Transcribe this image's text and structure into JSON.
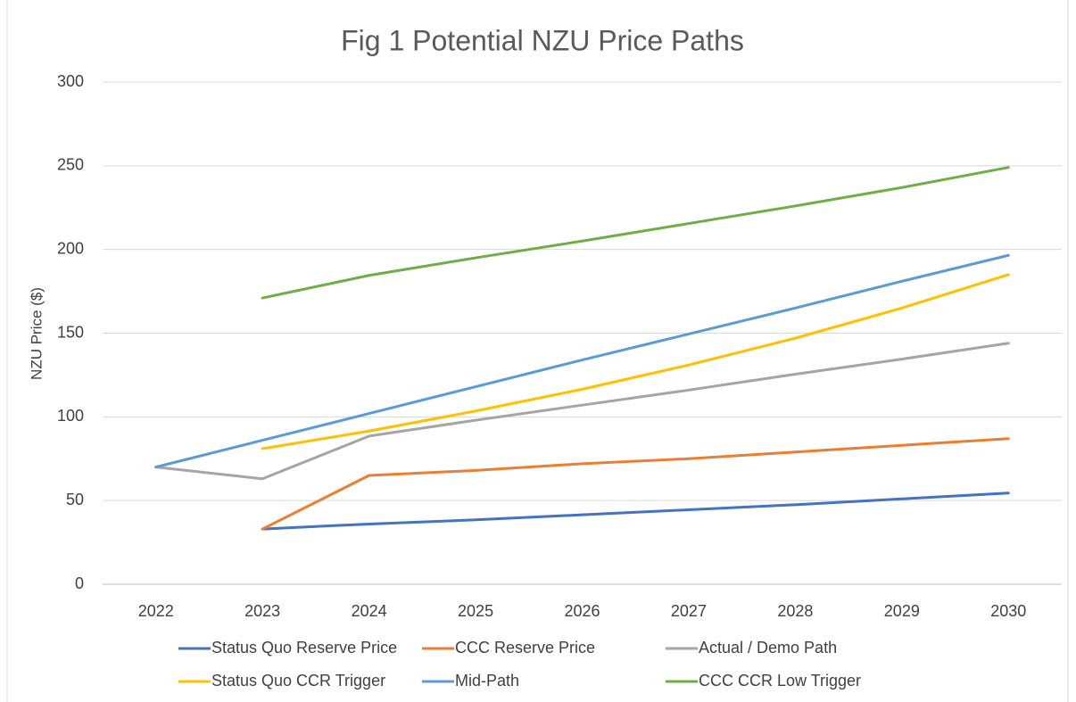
{
  "chart_data": {
    "type": "line",
    "title": "Fig 1 Potential NZU Price Paths",
    "y_label": "NZU Price ($)",
    "categories": [
      "2022",
      "2023",
      "2024",
      "2025",
      "2026",
      "2027",
      "2028",
      "2029",
      "2030"
    ],
    "series": [
      {
        "name": "Status Quo Reserve Price",
        "color": "#4472c4",
        "values": [
          null,
          33,
          36,
          38.5,
          41.5,
          44.5,
          47.5,
          51,
          54.5
        ]
      },
      {
        "name": "CCC Reserve Price",
        "color": "#ed7d31",
        "values": [
          null,
          33,
          65,
          68,
          72,
          75,
          79,
          83,
          87
        ]
      },
      {
        "name": "Actual / Demo Path",
        "color": "#a5a5a5",
        "values": [
          70,
          63,
          88.5,
          98,
          107,
          116,
          125.5,
          134.5,
          144
        ]
      },
      {
        "name": "Status Quo CCR Trigger",
        "color": "#ffc000",
        "values": [
          null,
          81,
          91.5,
          103.5,
          116.5,
          131,
          147,
          165,
          185
        ]
      },
      {
        "name": "Mid-Path",
        "color": "#5b9bd5",
        "values": [
          70,
          86,
          102,
          118,
          134,
          149.5,
          165,
          181,
          196.5
        ]
      },
      {
        "name": "CCC CCR Low Trigger",
        "color": "#70ad47",
        "values": [
          null,
          171,
          184.5,
          195,
          205,
          215.5,
          226,
          237,
          249
        ]
      }
    ],
    "ylim": [
      0,
      300
    ],
    "yticks": [
      0,
      50,
      100,
      150,
      200,
      250,
      300
    ],
    "grid": true,
    "legend": "bottom"
  }
}
